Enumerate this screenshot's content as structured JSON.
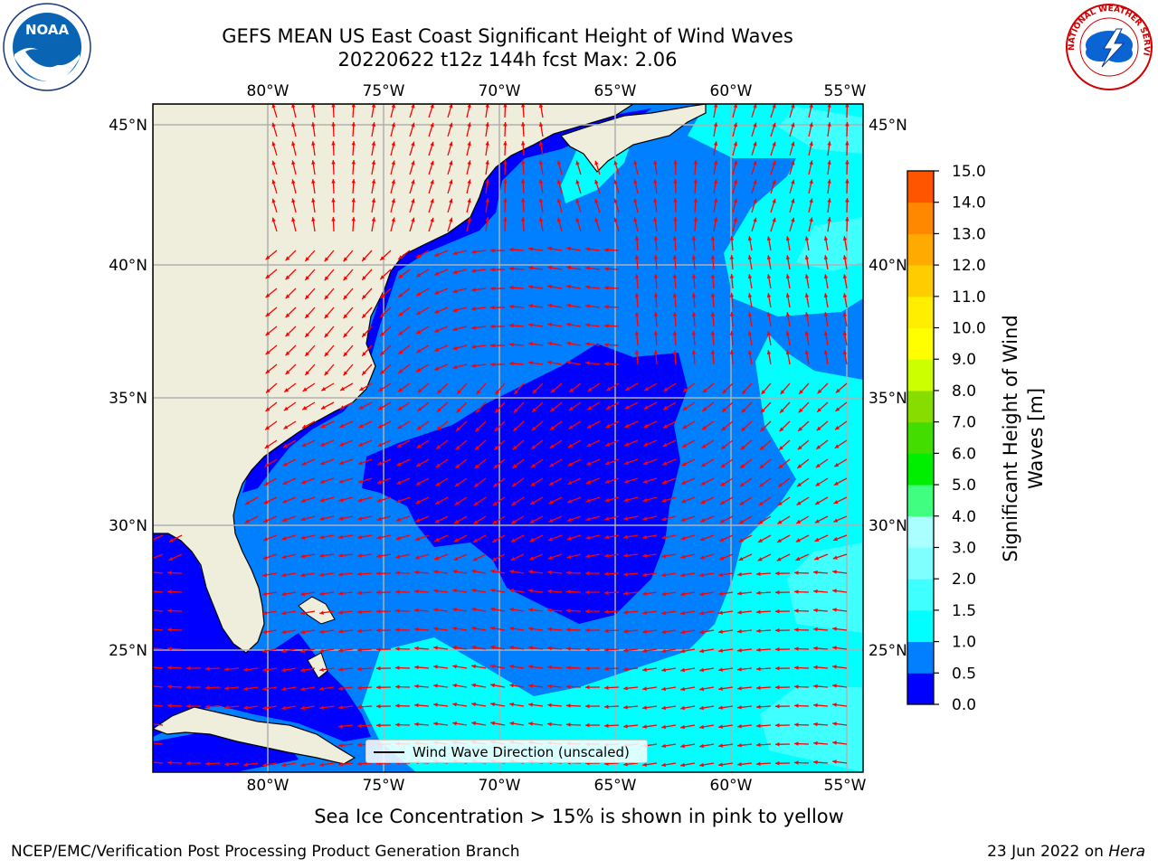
{
  "header": {
    "title_line1": "GEFS MEAN US East Coast Significant Height of Wind Waves",
    "title_line2": "20220622 t12z 144h fcst   Max: 2.06"
  },
  "logos": {
    "left": {
      "icon": "noaa-logo",
      "text": "NOAA"
    },
    "right": {
      "icon": "nws-logo",
      "text": "NATIONAL WEATHER SERVICE"
    }
  },
  "map": {
    "lon_labels": [
      "80°W",
      "75°W",
      "70°W",
      "65°W",
      "60°W",
      "55°W"
    ],
    "lat_labels": [
      "45°N",
      "40°N",
      "35°N",
      "30°N",
      "25°N"
    ],
    "land_color": "#efeedc",
    "arrow_color": "#ff0000",
    "legend_label": "Wind Wave Direction (unscaled)"
  },
  "colorbar": {
    "title_line1": "Significant Height of Wind",
    "title_line2": "Waves [m]",
    "ticks": [
      "15.0",
      "14.0",
      "13.0",
      "12.0",
      "11.0",
      "10.0",
      "9.0",
      "8.0",
      "7.0",
      "6.0",
      "5.0",
      "4.0",
      "3.0",
      "2.0",
      "1.5",
      "1.0",
      "0.5",
      "0.0"
    ],
    "colors": [
      "#0000ff",
      "#0080ff",
      "#00ffff",
      "#40ffff",
      "#80ffff",
      "#aaffff",
      "#40ff80",
      "#00ee00",
      "#44dd00",
      "#88dd00",
      "#ccff00",
      "#ffff00",
      "#ffee00",
      "#ffcc00",
      "#ffaa00",
      "#ff8800",
      "#ff5500",
      "#ff2200",
      "#ff0000"
    ]
  },
  "caption": "Sea Ice Concentration > 15% is shown in pink to yellow",
  "footer": {
    "left": "NCEP/EMC/Verification Post Processing Product Generation Branch",
    "right_prefix": "23 Jun 2022 on ",
    "right_italic": "Hera"
  }
}
